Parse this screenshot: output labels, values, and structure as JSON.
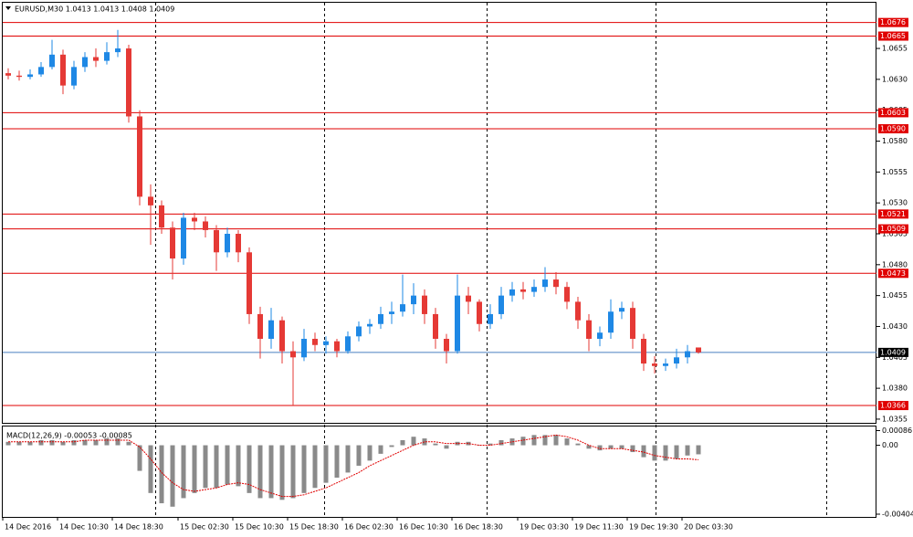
{
  "chart_data": {
    "type": "candlestick",
    "title": "EURUSD,M30  1.0413 1.0413 1.0408 1.0409",
    "categories": [
      "14 Dec 2016",
      null,
      null,
      null,
      null,
      "14 Dec 10:30",
      null,
      null,
      null,
      null,
      "14 Dec 18:30",
      null,
      null,
      null,
      null,
      null,
      "15 Dec 02:30",
      null,
      null,
      null,
      null,
      "15 Dec 10:30",
      null,
      null,
      null,
      null,
      "15 Dec 18:30",
      null,
      null,
      null,
      null,
      "16 Dec 02:30",
      null,
      null,
      null,
      null,
      "16 Dec 10:30",
      null,
      null,
      null,
      null,
      "16 Dec 18:30",
      null,
      null,
      null,
      null,
      null,
      "19 Dec 03:30",
      null,
      null,
      null,
      null,
      "19 Dec 11:30",
      null,
      null,
      null,
      null,
      "19 Dec 19:30",
      null,
      null,
      null,
      null,
      "20 Dec 03:30",
      null
    ],
    "open": [
      1.0635,
      1.0633,
      1.0632,
      1.0634,
      1.064,
      1.065,
      1.0625,
      1.064,
      1.0648,
      1.0645,
      1.0652,
      1.0655,
      1.06,
      1.0535,
      1.0528,
      1.051,
      1.0485,
      1.0518,
      1.0515,
      1.0508,
      1.049,
      1.0505,
      1.049,
      1.044,
      1.042,
      1.0435,
      1.041,
      1.0405,
      1.042,
      1.0415,
      1.0418,
      1.041,
      1.0422,
      1.043,
      1.0432,
      1.044,
      1.0442,
      1.0448,
      1.0455,
      1.044,
      1.042,
      1.041,
      1.0455,
      1.045,
      1.0432,
      1.044,
      1.0455,
      1.046,
      1.0458,
      1.0462,
      1.0468,
      1.0462,
      1.045,
      1.0435,
      1.042,
      1.0425,
      1.0442,
      1.0445,
      1.042,
      1.04,
      1.0398,
      1.04,
      1.0405,
      1.0413
    ],
    "high": [
      1.0639,
      1.0637,
      1.0638,
      1.0644,
      1.0662,
      1.0654,
      1.0645,
      1.0652,
      1.0655,
      1.066,
      1.067,
      1.0658,
      1.0605,
      1.0545,
      1.0532,
      1.0515,
      1.0522,
      1.0522,
      1.0519,
      1.0512,
      1.051,
      1.0508,
      1.0494,
      1.0446,
      1.0445,
      1.0438,
      1.0418,
      1.0428,
      1.0425,
      1.0422,
      1.042,
      1.0426,
      1.0434,
      1.0436,
      1.0446,
      1.045,
      1.0472,
      1.0465,
      1.046,
      1.0445,
      1.0424,
      1.0472,
      1.0462,
      1.0452,
      1.0448,
      1.0462,
      1.0466,
      1.0466,
      1.0468,
      1.0478,
      1.0474,
      1.0466,
      1.0454,
      1.044,
      1.043,
      1.0452,
      1.045,
      1.045,
      1.0424,
      1.0406,
      1.0404,
      1.0412,
      1.0415,
      1.0413
    ],
    "low": [
      1.063,
      1.0629,
      1.063,
      1.0632,
      1.0638,
      1.0618,
      1.0622,
      1.0636,
      1.064,
      1.0642,
      1.0648,
      1.0595,
      1.0528,
      1.0496,
      1.0505,
      1.0468,
      1.048,
      1.0508,
      1.0502,
      1.0475,
      1.0486,
      1.0482,
      1.0432,
      1.0404,
      1.0412,
      1.04,
      1.0366,
      1.0402,
      1.041,
      1.0408,
      1.0405,
      1.0408,
      1.0418,
      1.0424,
      1.0428,
      1.0432,
      1.0438,
      1.044,
      1.0432,
      1.0412,
      1.04,
      1.0408,
      1.044,
      1.0426,
      1.0428,
      1.0436,
      1.045,
      1.0452,
      1.0454,
      1.0458,
      1.0456,
      1.0444,
      1.0428,
      1.041,
      1.0414,
      1.042,
      1.0436,
      1.0412,
      1.0394,
      1.0392,
      1.0394,
      1.0396,
      1.04,
      1.0408
    ],
    "close": [
      1.0633,
      1.0632,
      1.0634,
      1.064,
      1.065,
      1.0625,
      1.064,
      1.0648,
      1.0645,
      1.0652,
      1.0655,
      1.06,
      1.0535,
      1.0528,
      1.051,
      1.0485,
      1.0518,
      1.0515,
      1.0508,
      1.049,
      1.0505,
      1.049,
      1.044,
      1.042,
      1.0435,
      1.041,
      1.0405,
      1.042,
      1.0415,
      1.0418,
      1.041,
      1.0422,
      1.043,
      1.0432,
      1.044,
      1.0442,
      1.0448,
      1.0455,
      1.044,
      1.042,
      1.041,
      1.0455,
      1.045,
      1.0432,
      1.044,
      1.0455,
      1.046,
      1.0458,
      1.0462,
      1.0468,
      1.0462,
      1.045,
      1.0435,
      1.042,
      1.0425,
      1.0442,
      1.0445,
      1.042,
      1.04,
      1.0398,
      1.04,
      1.0405,
      1.041,
      1.0409
    ],
    "up_color": "#1e88e5",
    "down_color": "#e53935",
    "ylim": [
      1.0352,
      1.0692
    ],
    "yticks": [
      1.0655,
      {
        "value": 1.063,
        "label": "1.0630"
      },
      1.0605,
      {
        "value": 1.058,
        "label": "1.0580"
      },
      1.0555,
      {
        "value": 1.053,
        "label": "1.0530"
      },
      1.0505,
      {
        "value": 1.048,
        "label": "1.0480"
      },
      1.0455,
      {
        "value": 1.043,
        "label": "1.0430"
      },
      1.0405,
      {
        "value": 1.038,
        "label": "1.0380"
      },
      1.0355
    ],
    "levels": [
      1.0676,
      1.0665,
      1.0603,
      {
        "value": 1.059,
        "label": "1.0590"
      },
      1.0521,
      1.0509,
      1.0473,
      1.0366
    ],
    "level_color": "#e00000",
    "current": 1.0409,
    "current_color": "#4a7fc0",
    "macd": {
      "label": "MACD(12,26,9) -0.00053 -0.00085",
      "histogram": [
        0.0002,
        0.0002,
        0.0002,
        0.0003,
        0.0003,
        0.0002,
        0.0003,
        0.0003,
        0.0003,
        0.0004,
        0.0004,
        0.0002,
        -0.0015,
        -0.0028,
        -0.0034,
        -0.0036,
        -0.0031,
        -0.0028,
        -0.0025,
        -0.0025,
        -0.0023,
        -0.0024,
        -0.0028,
        -0.0031,
        -0.0031,
        -0.0032,
        -0.0031,
        -0.0028,
        -0.0025,
        -0.0022,
        -0.0019,
        -0.0016,
        -0.0012,
        -0.0009,
        -0.0005,
        -0.0001,
        0.0003,
        0.0005,
        0.0004,
        0.0001,
        -0.0002,
        0.0002,
        0.0002,
        0.0,
        0.0001,
        0.0003,
        0.0004,
        0.0005,
        0.0006,
        0.0006,
        0.0006,
        0.0004,
        0.0001,
        -0.0002,
        -0.0003,
        -0.0002,
        -0.0002,
        -0.0004,
        -0.0007,
        -0.0009,
        -0.0009,
        -0.0008,
        -0.0006,
        -0.00053
      ],
      "signal": [
        0.0002,
        0.0002,
        0.0002,
        0.0002,
        0.0002,
        0.0002,
        0.0002,
        0.0003,
        0.0003,
        0.0003,
        0.0003,
        0.0003,
        -0.0001,
        -0.0008,
        -0.0016,
        -0.0022,
        -0.0026,
        -0.0027,
        -0.0026,
        -0.0025,
        -0.0023,
        -0.0022,
        -0.0023,
        -0.0026,
        -0.0028,
        -0.003,
        -0.003,
        -0.0029,
        -0.0027,
        -0.0025,
        -0.0022,
        -0.0019,
        -0.0016,
        -0.0012,
        -0.0009,
        -0.0006,
        -0.0003,
        0.0,
        0.0002,
        0.0002,
        0.0001,
        0.0001,
        0.0001,
        0.0,
        0.0,
        0.0001,
        0.0002,
        0.0003,
        0.0004,
        0.0005,
        0.0006,
        0.0005,
        0.0003,
        0.0,
        -0.0002,
        -0.0002,
        -0.0002,
        -0.0003,
        -0.0004,
        -0.0006,
        -0.0007,
        -0.0008,
        -0.0008,
        -0.00085
      ],
      "hist_color": "#8a8a8a",
      "signal_color": "#e00000",
      "ylim": [
        -0.0042,
        0.0011
      ],
      "yticks": [
        0.00086,
        {
          "value": 0,
          "label": "0.00"
        },
        -0.00404
      ]
    }
  }
}
